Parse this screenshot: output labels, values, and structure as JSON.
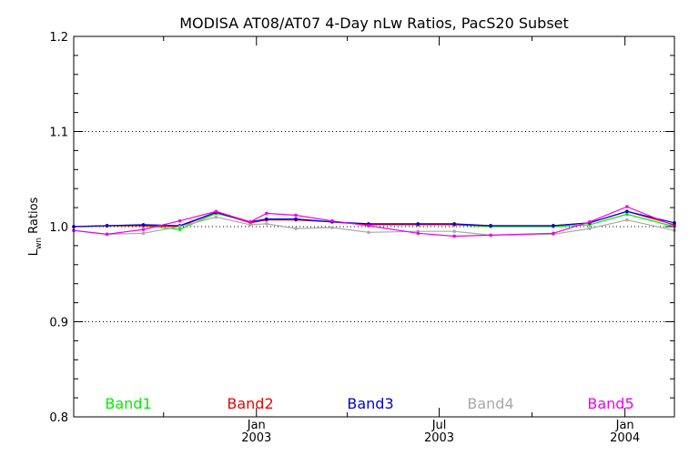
{
  "chart_data": {
    "type": "line",
    "title": "MODISA AT08/AT07 4-Day nLw Ratios, PacS20 Subset",
    "ylabel_main": "L",
    "ylabel_sub": "wn",
    "ylabel_rest": " Ratios",
    "xlabel": "",
    "ylim": [
      0.8,
      1.2
    ],
    "xlim": [
      "2002-07-04",
      "2004-02-19"
    ],
    "y_ticks": [
      "0.8",
      "0.9",
      "1.0",
      "1.1",
      "1.2"
    ],
    "x_ticks": [
      {
        "x": "2003-01-01",
        "label_top": "Jan",
        "label_bottom": "2003"
      },
      {
        "x": "2003-07-01",
        "label_top": "Jul",
        "label_bottom": "2003"
      },
      {
        "x": "2004-01-01",
        "label_top": "Jan",
        "label_bottom": "2004"
      }
    ],
    "x_minor_ticks": [
      "2002-10-01",
      "2003-04-01",
      "2003-10-01"
    ],
    "grid": "horizontal dotted at 0.9, 1.0, 1.1",
    "legend_position": "bottom",
    "series": [
      {
        "name": "Band1",
        "color": "#00ee00",
        "x": [
          "2002-07-04",
          "2002-08-06",
          "2002-09-11",
          "2002-10-17",
          "2002-11-22",
          "2002-12-26",
          "2003-01-11",
          "2003-02-09",
          "2003-03-17",
          "2003-04-22",
          "2003-06-10",
          "2003-07-16",
          "2003-08-21",
          "2003-10-22",
          "2003-11-27",
          "2004-01-03",
          "2004-02-19"
        ],
        "y": [
          1.0,
          1.001,
          1.001,
          0.997,
          1.014,
          1.005,
          1.008,
          1.008,
          1.005,
          1.002,
          1.002,
          1.002,
          1.0,
          1.0,
          1.002,
          1.013,
          1.0
        ]
      },
      {
        "name": "Band2",
        "color": "#ee0000",
        "x": [
          "2002-07-04",
          "2002-08-06",
          "2002-09-11",
          "2002-10-17",
          "2002-11-22",
          "2002-12-26",
          "2003-01-11",
          "2003-02-09",
          "2003-03-17",
          "2003-04-22",
          "2003-06-10",
          "2003-07-16",
          "2003-08-21",
          "2003-10-22",
          "2003-11-27",
          "2004-01-03",
          "2004-02-19"
        ],
        "y": [
          1.0,
          1.001,
          1.001,
          1.0,
          1.015,
          1.004,
          1.007,
          1.007,
          1.005,
          1.002,
          1.002,
          1.002,
          1.001,
          1.001,
          1.004,
          1.016,
          1.002
        ]
      },
      {
        "name": "Band3",
        "color": "#0000dd",
        "x": [
          "2002-07-04",
          "2002-08-06",
          "2002-09-11",
          "2002-10-17",
          "2002-11-22",
          "2002-12-26",
          "2003-01-11",
          "2003-02-09",
          "2003-03-17",
          "2003-04-22",
          "2003-06-10",
          "2003-07-16",
          "2003-08-21",
          "2003-10-22",
          "2003-11-27",
          "2004-01-03",
          "2004-02-19"
        ],
        "y": [
          1.0,
          1.001,
          1.002,
          1.001,
          1.015,
          1.005,
          1.008,
          1.008,
          1.005,
          1.003,
          1.003,
          1.003,
          1.001,
          1.001,
          1.004,
          1.016,
          1.004
        ]
      },
      {
        "name": "Band4",
        "color": "#a8a8a8",
        "x": [
          "2002-07-04",
          "2002-08-06",
          "2002-09-11",
          "2002-10-17",
          "2002-11-22",
          "2002-12-26",
          "2003-01-11",
          "2003-02-09",
          "2003-03-17",
          "2003-04-22",
          "2003-06-10",
          "2003-07-16",
          "2003-08-21",
          "2003-10-22",
          "2003-11-27",
          "2004-01-03",
          "2004-02-19"
        ],
        "y": [
          0.996,
          0.992,
          0.993,
          1.0,
          1.01,
          1.002,
          1.003,
          0.998,
          0.999,
          0.994,
          0.995,
          0.995,
          0.991,
          0.992,
          0.998,
          1.007,
          0.996
        ]
      },
      {
        "name": "Band5",
        "color": "#ee00ee",
        "x": [
          "2002-07-04",
          "2002-08-06",
          "2002-09-11",
          "2002-10-17",
          "2002-11-22",
          "2002-12-26",
          "2003-01-11",
          "2003-02-09",
          "2003-03-17",
          "2003-04-22",
          "2003-06-10",
          "2003-07-16",
          "2003-08-21",
          "2003-10-22",
          "2003-11-27",
          "2004-01-03",
          "2004-02-19"
        ],
        "y": [
          0.996,
          0.992,
          0.997,
          1.006,
          1.016,
          1.005,
          1.014,
          1.012,
          1.006,
          1.001,
          0.993,
          0.99,
          0.991,
          0.993,
          1.005,
          1.021,
          1.001
        ]
      }
    ]
  }
}
